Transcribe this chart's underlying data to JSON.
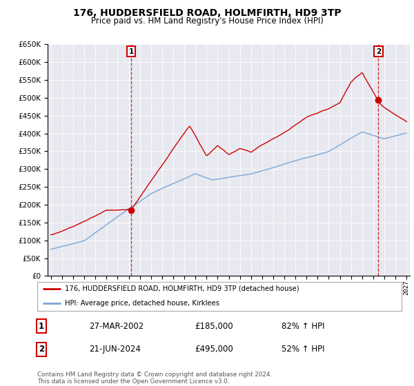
{
  "title": "176, HUDDERSFIELD ROAD, HOLMFIRTH, HD9 3TP",
  "subtitle": "Price paid vs. HM Land Registry's House Price Index (HPI)",
  "legend_line1": "176, HUDDERSFIELD ROAD, HOLMFIRTH, HD9 3TP (detached house)",
  "legend_line2": "HPI: Average price, detached house, Kirklees",
  "transaction1_date": "27-MAR-2002",
  "transaction1_price": "£185,000",
  "transaction1_hpi": "82% ↑ HPI",
  "transaction2_date": "21-JUN-2024",
  "transaction2_price": "£495,000",
  "transaction2_hpi": "52% ↑ HPI",
  "footnote": "Contains HM Land Registry data © Crown copyright and database right 2024.\nThis data is licensed under the Open Government Licence v3.0.",
  "hpi_color": "#7aa6d4",
  "price_color": "#cc0000",
  "bg_color": "#ffffff",
  "plot_bg": "#e8e8f0",
  "grid_color": "#ffffff",
  "ylim_min": 0,
  "ylim_max": 650000,
  "transaction1_year": 2002.23,
  "transaction1_value": 185000,
  "transaction2_year": 2024.47,
  "transaction2_value": 495000
}
